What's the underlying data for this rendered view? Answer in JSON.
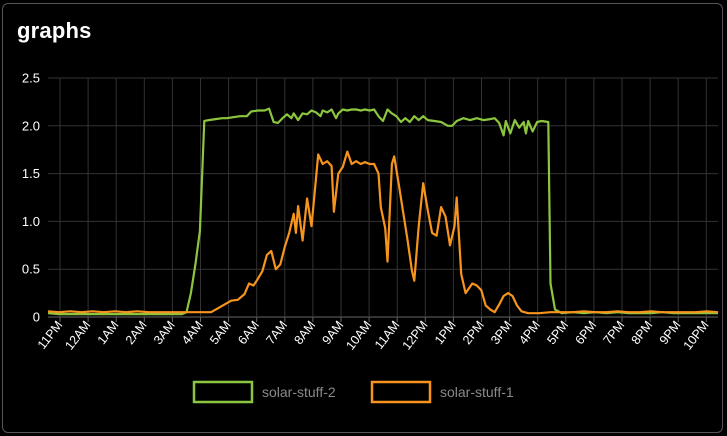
{
  "panel": {
    "title": "graphs"
  },
  "colors": {
    "background": "#000000",
    "grid": "#333333",
    "axis": "#666666",
    "series_green": "#8cc63f",
    "series_orange": "#f7941d"
  },
  "chart_data": {
    "type": "line",
    "title": "graphs",
    "xlabel": "",
    "ylabel": "",
    "ylim": [
      0,
      2.5
    ],
    "yticks": [
      "0",
      "0.5",
      "1.0",
      "1.5",
      "2.0",
      "2.5"
    ],
    "xticks": [
      "11PM",
      "12AM",
      "1AM",
      "2AM",
      "3AM",
      "4AM",
      "5AM",
      "6AM",
      "7AM",
      "8AM",
      "9AM",
      "10AM",
      "11AM",
      "12PM",
      "1PM",
      "2PM",
      "3PM",
      "4PM",
      "5PM",
      "6PM",
      "7PM",
      "8PM",
      "9PM",
      "10PM"
    ],
    "x_unit": "hours since 11PM",
    "grid": true,
    "legend_position": "bottom",
    "series": [
      {
        "name": "solar-stuff-2",
        "color": "#8cc63f",
        "points": [
          [
            0,
            0.04
          ],
          [
            0.5,
            0.03
          ],
          [
            1,
            0.03
          ],
          [
            1.5,
            0.03
          ],
          [
            2,
            0.03
          ],
          [
            2.5,
            0.03
          ],
          [
            3,
            0.03
          ],
          [
            3.5,
            0.03
          ],
          [
            4,
            0.03
          ],
          [
            4.5,
            0.03
          ],
          [
            5,
            0.03
          ],
          [
            5.5,
            0.03
          ],
          [
            6,
            0.03
          ],
          [
            6.2,
            0.05
          ],
          [
            6.4,
            0.25
          ],
          [
            6.6,
            0.55
          ],
          [
            6.8,
            0.9
          ],
          [
            7.0,
            2.05
          ],
          [
            7.2,
            2.06
          ],
          [
            7.5,
            2.07
          ],
          [
            7.8,
            2.08
          ],
          [
            8.0,
            2.08
          ],
          [
            8.3,
            2.09
          ],
          [
            8.6,
            2.1
          ],
          [
            8.9,
            2.1
          ],
          [
            9.1,
            2.15
          ],
          [
            9.4,
            2.16
          ],
          [
            9.7,
            2.16
          ],
          [
            9.9,
            2.18
          ],
          [
            10.1,
            2.04
          ],
          [
            10.3,
            2.03
          ],
          [
            10.5,
            2.08
          ],
          [
            10.7,
            2.12
          ],
          [
            10.9,
            2.08
          ],
          [
            11.0,
            2.13
          ],
          [
            11.2,
            2.06
          ],
          [
            11.4,
            2.13
          ],
          [
            11.6,
            2.12
          ],
          [
            11.8,
            2.16
          ],
          [
            12.0,
            2.14
          ],
          [
            12.2,
            2.1
          ],
          [
            12.3,
            2.16
          ],
          [
            12.5,
            2.14
          ],
          [
            12.7,
            2.17
          ],
          [
            12.9,
            2.08
          ],
          [
            13.0,
            2.13
          ],
          [
            13.2,
            2.17
          ],
          [
            13.4,
            2.16
          ],
          [
            13.6,
            2.17
          ],
          [
            13.8,
            2.17
          ],
          [
            14.0,
            2.16
          ],
          [
            14.2,
            2.17
          ],
          [
            14.4,
            2.16
          ],
          [
            14.6,
            2.17
          ],
          [
            14.8,
            2.1
          ],
          [
            15.0,
            2.05
          ],
          [
            15.2,
            2.17
          ],
          [
            15.4,
            2.13
          ],
          [
            15.6,
            2.1
          ],
          [
            15.8,
            2.04
          ],
          [
            16.0,
            2.08
          ],
          [
            16.2,
            2.04
          ],
          [
            16.4,
            2.1
          ],
          [
            16.6,
            2.06
          ],
          [
            16.8,
            2.1
          ],
          [
            17.0,
            2.06
          ],
          [
            17.3,
            2.05
          ],
          [
            17.6,
            2.04
          ],
          [
            17.9,
            2.0
          ],
          [
            18.1,
            2.0
          ],
          [
            18.3,
            2.05
          ],
          [
            18.6,
            2.08
          ],
          [
            18.9,
            2.06
          ],
          [
            19.2,
            2.08
          ],
          [
            19.5,
            2.06
          ],
          [
            19.8,
            2.07
          ],
          [
            20.0,
            2.08
          ],
          [
            20.2,
            2.03
          ],
          [
            20.4,
            1.9
          ],
          [
            20.5,
            2.05
          ],
          [
            20.7,
            1.92
          ],
          [
            20.9,
            2.06
          ],
          [
            21.1,
            1.98
          ],
          [
            21.3,
            2.04
          ],
          [
            21.4,
            1.92
          ],
          [
            21.5,
            2.05
          ],
          [
            21.7,
            1.94
          ],
          [
            21.9,
            2.04
          ],
          [
            22.1,
            2.05
          ],
          [
            22.4,
            2.04
          ],
          [
            22.5,
            0.35
          ],
          [
            22.7,
            0.08
          ],
          [
            23.0,
            0.04
          ],
          [
            23.5,
            0.05
          ],
          [
            24,
            0.04
          ],
          [
            24.5,
            0.05
          ],
          [
            25,
            0.04
          ],
          [
            25.5,
            0.05
          ],
          [
            26,
            0.04
          ],
          [
            26.5,
            0.04
          ],
          [
            27,
            0.04
          ],
          [
            27.5,
            0.05
          ],
          [
            28,
            0.04
          ],
          [
            28.5,
            0.04
          ],
          [
            29,
            0.04
          ],
          [
            29.5,
            0.04
          ],
          [
            30,
            0.04
          ]
        ]
      },
      {
        "name": "solar-stuff-1",
        "color": "#f7941d",
        "points": [
          [
            0,
            0.06
          ],
          [
            0.5,
            0.05
          ],
          [
            1,
            0.06
          ],
          [
            1.5,
            0.05
          ],
          [
            2,
            0.06
          ],
          [
            2.5,
            0.05
          ],
          [
            3,
            0.06
          ],
          [
            3.5,
            0.05
          ],
          [
            4,
            0.06
          ],
          [
            4.5,
            0.05
          ],
          [
            5,
            0.05
          ],
          [
            5.5,
            0.05
          ],
          [
            6,
            0.05
          ],
          [
            6.5,
            0.05
          ],
          [
            7,
            0.05
          ],
          [
            7.3,
            0.05
          ],
          [
            7.6,
            0.09
          ],
          [
            7.9,
            0.13
          ],
          [
            8.2,
            0.17
          ],
          [
            8.5,
            0.18
          ],
          [
            8.8,
            0.24
          ],
          [
            9.0,
            0.35
          ],
          [
            9.2,
            0.33
          ],
          [
            9.4,
            0.4
          ],
          [
            9.6,
            0.48
          ],
          [
            9.8,
            0.65
          ],
          [
            10.0,
            0.69
          ],
          [
            10.2,
            0.5
          ],
          [
            10.4,
            0.55
          ],
          [
            10.6,
            0.73
          ],
          [
            10.8,
            0.88
          ],
          [
            11.0,
            1.08
          ],
          [
            11.1,
            0.88
          ],
          [
            11.2,
            1.16
          ],
          [
            11.4,
            0.8
          ],
          [
            11.6,
            1.24
          ],
          [
            11.8,
            0.95
          ],
          [
            12.0,
            1.45
          ],
          [
            12.1,
            1.7
          ],
          [
            12.3,
            1.6
          ],
          [
            12.5,
            1.63
          ],
          [
            12.7,
            1.58
          ],
          [
            12.8,
            1.1
          ],
          [
            13.0,
            1.5
          ],
          [
            13.2,
            1.57
          ],
          [
            13.4,
            1.73
          ],
          [
            13.6,
            1.6
          ],
          [
            13.8,
            1.63
          ],
          [
            14.0,
            1.6
          ],
          [
            14.2,
            1.62
          ],
          [
            14.4,
            1.6
          ],
          [
            14.6,
            1.6
          ],
          [
            14.8,
            1.5
          ],
          [
            14.9,
            1.15
          ],
          [
            15.1,
            0.93
          ],
          [
            15.2,
            0.58
          ],
          [
            15.4,
            1.6
          ],
          [
            15.5,
            1.68
          ],
          [
            15.7,
            1.4
          ],
          [
            15.9,
            1.1
          ],
          [
            16.1,
            0.8
          ],
          [
            16.3,
            0.48
          ],
          [
            16.4,
            0.38
          ],
          [
            16.6,
            0.95
          ],
          [
            16.8,
            1.4
          ],
          [
            17.0,
            1.12
          ],
          [
            17.2,
            0.88
          ],
          [
            17.4,
            0.85
          ],
          [
            17.6,
            1.15
          ],
          [
            17.8,
            1.05
          ],
          [
            18.0,
            0.75
          ],
          [
            18.2,
            0.95
          ],
          [
            18.3,
            1.25
          ],
          [
            18.5,
            0.45
          ],
          [
            18.7,
            0.25
          ],
          [
            19.0,
            0.35
          ],
          [
            19.2,
            0.33
          ],
          [
            19.4,
            0.28
          ],
          [
            19.6,
            0.12
          ],
          [
            19.8,
            0.08
          ],
          [
            20.0,
            0.05
          ],
          [
            20.2,
            0.13
          ],
          [
            20.4,
            0.22
          ],
          [
            20.6,
            0.25
          ],
          [
            20.8,
            0.22
          ],
          [
            21.0,
            0.12
          ],
          [
            21.2,
            0.06
          ],
          [
            21.5,
            0.04
          ],
          [
            22,
            0.04
          ],
          [
            22.5,
            0.05
          ],
          [
            23,
            0.05
          ],
          [
            23.5,
            0.05
          ],
          [
            24,
            0.06
          ],
          [
            24.5,
            0.05
          ],
          [
            25,
            0.05
          ],
          [
            25.5,
            0.06
          ],
          [
            26,
            0.05
          ],
          [
            26.5,
            0.05
          ],
          [
            27,
            0.06
          ],
          [
            27.5,
            0.05
          ],
          [
            28,
            0.05
          ],
          [
            28.5,
            0.05
          ],
          [
            29,
            0.05
          ],
          [
            29.5,
            0.06
          ],
          [
            30,
            0.05
          ]
        ]
      }
    ]
  }
}
